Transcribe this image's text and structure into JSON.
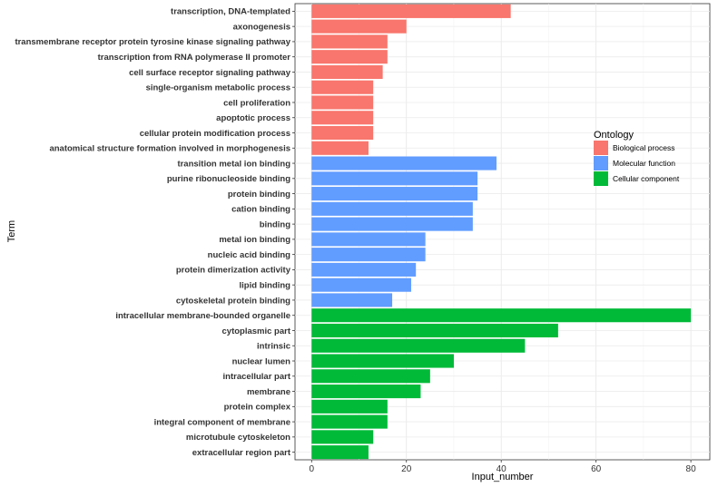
{
  "chart_data": {
    "type": "bar",
    "orientation": "horizontal",
    "xlabel": "Input_number",
    "ylabel": "Term",
    "xlim": [
      -3.5,
      84
    ],
    "xticks": [
      0,
      20,
      40,
      60,
      80
    ],
    "grid": true,
    "legend": {
      "title": "Ontology",
      "placement": "right",
      "entries": [
        {
          "label": "Biological process",
          "color": "#F8766D"
        },
        {
          "label": "Molecular function",
          "color": "#619CFF"
        },
        {
          "label": "Cellular component",
          "color": "#00BA38"
        }
      ]
    },
    "bars": [
      {
        "term": "transcription, DNA-templated",
        "value": 42,
        "ontology": "Biological process"
      },
      {
        "term": "axonogenesis",
        "value": 20,
        "ontology": "Biological process"
      },
      {
        "term": "transmembrane receptor protein tyrosine kinase signaling pathway",
        "value": 16,
        "ontology": "Biological process"
      },
      {
        "term": "transcription from RNA polymerase II promoter",
        "value": 16,
        "ontology": "Biological process"
      },
      {
        "term": "cell surface receptor signaling pathway",
        "value": 15,
        "ontology": "Biological process"
      },
      {
        "term": "single-organism metabolic process",
        "value": 13,
        "ontology": "Biological process"
      },
      {
        "term": "cell proliferation",
        "value": 13,
        "ontology": "Biological process"
      },
      {
        "term": "apoptotic process",
        "value": 13,
        "ontology": "Biological process"
      },
      {
        "term": "cellular protein modification process",
        "value": 13,
        "ontology": "Biological process"
      },
      {
        "term": "anatomical structure formation involved in morphogenesis",
        "value": 12,
        "ontology": "Biological process"
      },
      {
        "term": "transition metal ion binding",
        "value": 39,
        "ontology": "Molecular function"
      },
      {
        "term": "purine ribonucleoside binding",
        "value": 35,
        "ontology": "Molecular function"
      },
      {
        "term": "protein binding",
        "value": 35,
        "ontology": "Molecular function"
      },
      {
        "term": "cation binding",
        "value": 34,
        "ontology": "Molecular function"
      },
      {
        "term": "binding",
        "value": 34,
        "ontology": "Molecular function"
      },
      {
        "term": "metal ion binding",
        "value": 24,
        "ontology": "Molecular function"
      },
      {
        "term": "nucleic acid binding",
        "value": 24,
        "ontology": "Molecular function"
      },
      {
        "term": "protein dimerization activity",
        "value": 22,
        "ontology": "Molecular function"
      },
      {
        "term": "lipid binding",
        "value": 21,
        "ontology": "Molecular function"
      },
      {
        "term": "cytoskeletal protein binding",
        "value": 17,
        "ontology": "Molecular function"
      },
      {
        "term": "intracellular membrane-bounded organelle",
        "value": 80,
        "ontology": "Cellular component"
      },
      {
        "term": "cytoplasmic part",
        "value": 52,
        "ontology": "Cellular component"
      },
      {
        "term": "intrinsic",
        "value": 45,
        "ontology": "Cellular component"
      },
      {
        "term": "nuclear lumen",
        "value": 30,
        "ontology": "Cellular component"
      },
      {
        "term": "intracellular part",
        "value": 25,
        "ontology": "Cellular component"
      },
      {
        "term": "membrane",
        "value": 23,
        "ontology": "Cellular component"
      },
      {
        "term": "protein complex",
        "value": 16,
        "ontology": "Cellular component"
      },
      {
        "term": "integral component of membrane",
        "value": 16,
        "ontology": "Cellular component"
      },
      {
        "term": "microtubule cytoskeleton",
        "value": 13,
        "ontology": "Cellular component"
      },
      {
        "term": "extracellular region part",
        "value": 12,
        "ontology": "Cellular component"
      }
    ]
  }
}
